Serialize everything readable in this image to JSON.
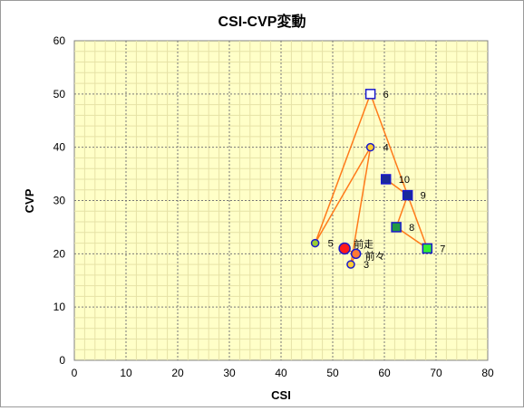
{
  "chart_data": {
    "type": "scatter",
    "title": "CSI-CVP変動",
    "xlabel": "CSI",
    "ylabel": "CVP",
    "xlim": [
      0,
      80
    ],
    "ylim": [
      0,
      60
    ],
    "xticks": [
      0,
      10,
      20,
      30,
      40,
      50,
      60,
      70,
      80
    ],
    "yticks": [
      0,
      10,
      20,
      30,
      40,
      50,
      60
    ],
    "grid": true,
    "legend": "none",
    "colors": {
      "plot_background": "#ffffc8",
      "grid_line": "#777777",
      "connector_line": "#ff7a1a"
    },
    "points": [
      {
        "label": "前走",
        "x": 52.3,
        "y": 21.0,
        "marker": "circle",
        "size": "large",
        "fill": "#ff1a1a",
        "stroke": "#1a1acc"
      },
      {
        "label": "前々",
        "x": 54.5,
        "y": 20.0,
        "marker": "circle",
        "size": "medium",
        "fill": "#ff7a33",
        "stroke": "#1a1acc"
      },
      {
        "label": "3",
        "x": 53.5,
        "y": 18.0,
        "marker": "circle",
        "size": "small",
        "fill": "#ffcc33",
        "stroke": "#1a1acc"
      },
      {
        "label": "4",
        "x": 57.3,
        "y": 40.0,
        "marker": "circle",
        "size": "small",
        "fill": "#ffcc33",
        "stroke": "#1a1acc"
      },
      {
        "label": "5",
        "x": 46.6,
        "y": 22.0,
        "marker": "circle",
        "size": "small",
        "fill": "#99cc33",
        "stroke": "#1a1acc"
      },
      {
        "label": "6",
        "x": 57.3,
        "y": 50.0,
        "marker": "square",
        "size": "small",
        "fill": "#ffffff",
        "stroke": "#1a1acc"
      },
      {
        "label": "7",
        "x": 68.3,
        "y": 21.0,
        "marker": "square",
        "size": "small",
        "fill": "#33ee33",
        "stroke": "#1a1acc"
      },
      {
        "label": "8",
        "x": 62.3,
        "y": 25.0,
        "marker": "square",
        "size": "small",
        "fill": "#229944",
        "stroke": "#1a1acc"
      },
      {
        "label": "9",
        "x": 64.5,
        "y": 31.0,
        "marker": "square",
        "size": "small",
        "fill": "#1a2a99",
        "stroke": "#1a1acc"
      },
      {
        "label": "10",
        "x": 60.3,
        "y": 34.0,
        "marker": "square",
        "size": "small",
        "fill": "#1a2a99",
        "stroke": "#1a1acc"
      }
    ],
    "path_order": [
      "前走",
      "前々",
      "3",
      "4",
      "5",
      "6",
      "7",
      "8",
      "9",
      "10"
    ]
  }
}
